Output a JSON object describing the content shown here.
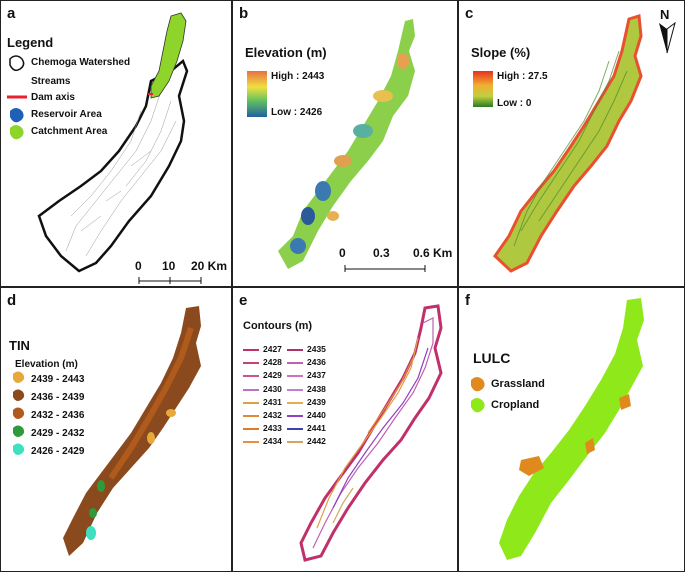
{
  "panels": {
    "a": {
      "label": "a",
      "legend_title": "Legend",
      "legend_items": [
        "Chemoga Watershed",
        "Streams",
        "Dam axis",
        "Reservoir Area",
        "Catchment Area"
      ],
      "scale": [
        "0",
        "10",
        "20 Km"
      ],
      "colors": {
        "dam": "#e8222a",
        "reservoir": "#1f5fb8",
        "catchment": "#8fd42a"
      }
    },
    "b": {
      "label": "b",
      "title": "Elevation (m)",
      "high": "High : 2443",
      "low": "Low : 2426",
      "scale": [
        "0",
        "0.3",
        "0.6 Km"
      ]
    },
    "c": {
      "label": "c",
      "title": "Slope (%)",
      "high": "High : 27.5",
      "low": "Low : 0",
      "north": "N"
    },
    "d": {
      "label": "d",
      "title": "TIN",
      "subtitle": "Elevation (m)",
      "classes": [
        {
          "range": "2439 - 2443",
          "color": "#e6a93a"
        },
        {
          "range": "2436 - 2439",
          "color": "#8a4a1e"
        },
        {
          "range": "2432 - 2436",
          "color": "#b05a1c"
        },
        {
          "range": "2429 - 2432",
          "color": "#2e9a3a"
        },
        {
          "range": "2426 - 2429",
          "color": "#3fe0c0"
        }
      ]
    },
    "e": {
      "label": "e",
      "title": "Contours (m)",
      "col1": [
        "2427",
        "2428",
        "2429",
        "2430",
        "2431",
        "2432",
        "2433",
        "2434"
      ],
      "col2": [
        "2435",
        "2436",
        "2437",
        "2438",
        "2439",
        "2440",
        "2441",
        "2442"
      ],
      "colors1": [
        "#c0306a",
        "#c8407a",
        "#d05088",
        "#c070c0",
        "#e0a040",
        "#e08a3a",
        "#e07a30",
        "#e89040"
      ],
      "colors2": [
        "#b0306a",
        "#c060b0",
        "#d070c0",
        "#c080d0",
        "#e0b050",
        "#9040c0",
        "#4040b0",
        "#d0a860"
      ]
    },
    "f": {
      "label": "f",
      "title": "LULC",
      "items": [
        "Grassland",
        "Cropland"
      ],
      "colors": {
        "grassland": "#e08a1e",
        "cropland": "#8fe81a"
      }
    }
  }
}
